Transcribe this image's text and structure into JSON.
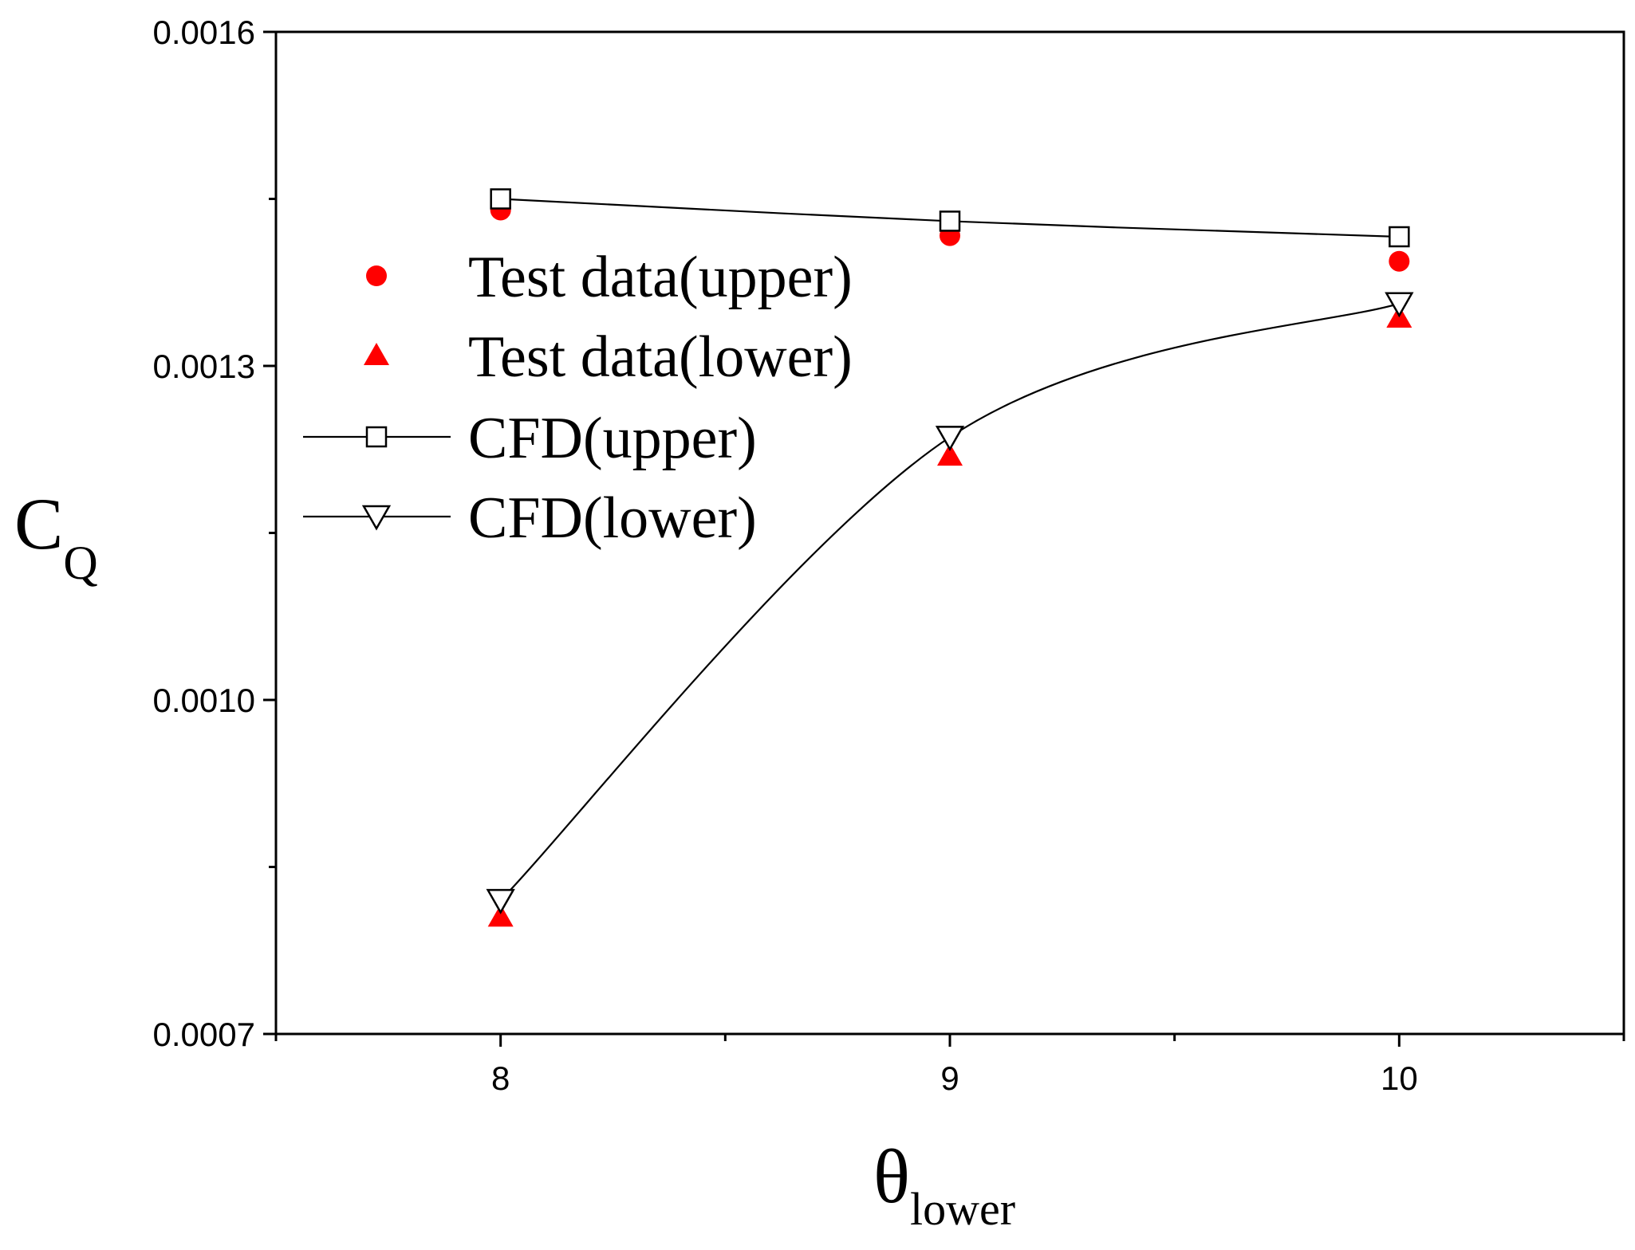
{
  "chart_data": {
    "type": "line",
    "x": [
      8,
      9,
      10
    ],
    "xlim": [
      7.5,
      10.5
    ],
    "ylim": [
      0.0007,
      0.0016
    ],
    "x_ticks": [
      8,
      9,
      10
    ],
    "x_tick_labels": [
      "8",
      "9",
      "10"
    ],
    "y_ticks": [
      0.0007,
      0.001,
      0.0013,
      0.0016
    ],
    "y_tick_labels": [
      "0.0007",
      "0.0010",
      "0.0013",
      "0.0016"
    ],
    "xlabel": {
      "main": "θ",
      "sub": "lower"
    },
    "ylabel": {
      "main": "C",
      "sub": "Q"
    },
    "legend_position": "upper-left",
    "series": [
      {
        "name": "Test data(upper)",
        "marker": "filled-circle",
        "line": false,
        "color": "#ff0000",
        "values": [
          0.00144,
          0.001417,
          0.001394
        ]
      },
      {
        "name": "Test data(lower)",
        "marker": "filled-triangle-up",
        "line": false,
        "color": "#ff0000",
        "values": [
          0.000805,
          0.001219,
          0.001343
        ]
      },
      {
        "name": "CFD(upper)",
        "marker": "open-square",
        "line": true,
        "color": "#000000",
        "values": [
          0.00145,
          0.00143,
          0.001416
        ]
      },
      {
        "name": "CFD(lower)",
        "marker": "open-triangle-down",
        "line": true,
        "color": "#000000",
        "values": [
          0.00082,
          0.001236,
          0.001356
        ]
      }
    ]
  }
}
